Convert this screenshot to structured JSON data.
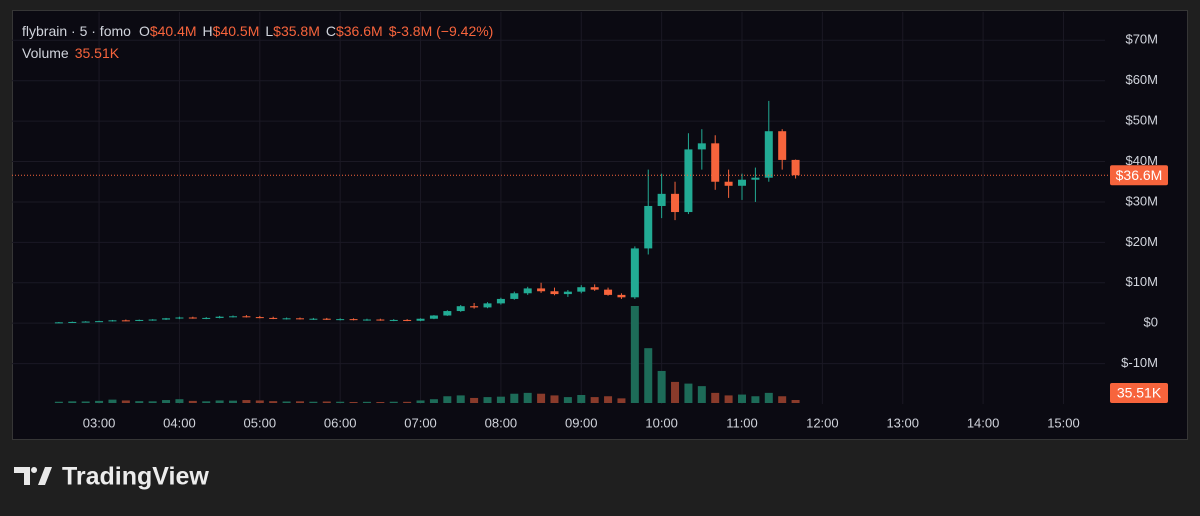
{
  "chart_data": {
    "type": "candlestick",
    "symbol": "flybrain · 5 · fomo",
    "ohlc_legend": [
      {
        "label": "O",
        "value": "$40.4M"
      },
      {
        "label": "H",
        "value": "$40.5M"
      },
      {
        "label": "L",
        "value": "$35.8M"
      },
      {
        "label": "C",
        "value": "$36.6M"
      }
    ],
    "change": "$-3.8M (−9.42%)",
    "up_color": "#22ab94",
    "down_color": "#f7643c",
    "volume_up_color": "#1d6b58",
    "volume_down_color": "#8a3b2b",
    "x": [
      "02:30",
      "02:40",
      "02:50",
      "03:00",
      "03:10",
      "03:20",
      "03:30",
      "03:40",
      "03:50",
      "04:00",
      "04:10",
      "04:20",
      "04:30",
      "04:40",
      "04:50",
      "05:00",
      "05:10",
      "05:20",
      "05:30",
      "05:40",
      "05:50",
      "06:00",
      "06:10",
      "06:20",
      "06:30",
      "06:40",
      "06:50",
      "07:00",
      "07:10",
      "07:20",
      "07:30",
      "07:40",
      "07:50",
      "08:00",
      "08:10",
      "08:20",
      "08:30",
      "08:40",
      "08:50",
      "09:00",
      "09:10",
      "09:20",
      "09:30",
      "09:40",
      "09:50",
      "10:00",
      "10:10",
      "10:20",
      "10:30",
      "10:40",
      "10:50",
      "11:00",
      "11:10",
      "11:20",
      "11:30",
      "11:40"
    ],
    "open": [
      200000,
      200000,
      300000,
      400000,
      500000,
      700000,
      600000,
      800000,
      900000,
      1200000,
      1400000,
      1200000,
      1300000,
      1600000,
      1700000,
      1500000,
      1300000,
      1100000,
      1200000,
      1000000,
      1100000,
      900000,
      1000000,
      800000,
      900000,
      700000,
      800000,
      600000,
      1100000,
      1900000,
      3000000,
      4200000,
      3900000,
      4900000,
      6000000,
      7400000,
      8600000,
      7900000,
      7200000,
      7800000,
      8900000,
      8300000,
      7000000,
      6400000,
      18500000,
      29000000,
      32000000,
      27500000,
      43000000,
      44500000,
      35000000,
      34000000,
      35500000,
      36000000,
      47500000,
      40400000
    ],
    "high": [
      300000,
      400000,
      500000,
      600000,
      800000,
      900000,
      900000,
      1000000,
      1300000,
      1600000,
      1600000,
      1500000,
      1800000,
      1900000,
      2000000,
      1800000,
      1600000,
      1400000,
      1400000,
      1300000,
      1300000,
      1200000,
      1200000,
      1100000,
      1100000,
      1000000,
      1000000,
      1200000,
      2000000,
      3200000,
      4500000,
      5000000,
      5200000,
      6300000,
      7800000,
      9000000,
      10000000,
      8800000,
      8200000,
      9400000,
      9600000,
      8800000,
      7400000,
      19000000,
      38000000,
      37000000,
      35000000,
      47000000,
      48000000,
      46500000,
      38000000,
      37000000,
      38500000,
      55000000,
      48000000,
      40500000
    ],
    "low": [
      100000,
      100000,
      200000,
      300000,
      400000,
      500000,
      500000,
      600000,
      800000,
      1000000,
      1100000,
      1000000,
      1200000,
      1400000,
      1400000,
      1200000,
      1000000,
      900000,
      900000,
      800000,
      800000,
      700000,
      700000,
      600000,
      600000,
      500000,
      500000,
      500000,
      1000000,
      1800000,
      2800000,
      3600000,
      3700000,
      4600000,
      5800000,
      7000000,
      7500000,
      6900000,
      6500000,
      7400000,
      8000000,
      6800000,
      6000000,
      6000000,
      17000000,
      26000000,
      25500000,
      27000000,
      38000000,
      33000000,
      31000000,
      30500000,
      30000000,
      35000000,
      38000000,
      35800000
    ],
    "close": [
      200000,
      300000,
      400000,
      500000,
      700000,
      600000,
      800000,
      900000,
      1200000,
      1400000,
      1200000,
      1300000,
      1600000,
      1700000,
      1500000,
      1300000,
      1100000,
      1200000,
      1000000,
      1100000,
      900000,
      1000000,
      800000,
      900000,
      700000,
      800000,
      600000,
      1100000,
      1900000,
      3000000,
      4200000,
      3900000,
      4900000,
      6000000,
      7400000,
      8600000,
      7900000,
      7200000,
      7800000,
      8900000,
      8300000,
      7000000,
      6400000,
      18500000,
      29000000,
      32000000,
      27500000,
      43000000,
      44500000,
      35000000,
      34000000,
      35500000,
      36000000,
      47500000,
      40400000,
      36600000
    ],
    "last_price_label": "$36.6M",
    "volume": {
      "name": "Volume",
      "last_label": "35.51K",
      "values": [
        15000,
        20000,
        18000,
        25000,
        40000,
        30000,
        22000,
        20000,
        35000,
        45000,
        25000,
        20000,
        30000,
        28000,
        35000,
        30000,
        22000,
        18000,
        20000,
        15000,
        18000,
        15000,
        12000,
        14000,
        12000,
        15000,
        14000,
        30000,
        45000,
        80000,
        90000,
        60000,
        70000,
        75000,
        110000,
        120000,
        110000,
        90000,
        70000,
        95000,
        70000,
        80000,
        55000,
        1150000,
        650000,
        380000,
        250000,
        230000,
        200000,
        120000,
        90000,
        100000,
        80000,
        120000,
        80000,
        35510
      ]
    },
    "xlim": [
      "01:55",
      "15:31"
    ],
    "xticks": [
      "03:00",
      "04:00",
      "05:00",
      "06:00",
      "07:00",
      "08:00",
      "09:00",
      "10:00",
      "11:00",
      "12:00",
      "13:00",
      "14:00",
      "15:00"
    ],
    "ylim": [
      -20000000,
      77000000
    ],
    "yticks": [
      {
        "value": -10000000,
        "label": "$-10M"
      },
      {
        "value": 0,
        "label": "$0"
      },
      {
        "value": 10000000,
        "label": "$10M"
      },
      {
        "value": 20000000,
        "label": "$20M"
      },
      {
        "value": 30000000,
        "label": "$30M"
      },
      {
        "value": 40000000,
        "label": "$40M"
      },
      {
        "value": 50000000,
        "label": "$50M"
      },
      {
        "value": 60000000,
        "label": "$60M"
      },
      {
        "value": 70000000,
        "label": "$70M"
      }
    ],
    "grid": true
  },
  "footer": {
    "brand": "TradingView"
  }
}
